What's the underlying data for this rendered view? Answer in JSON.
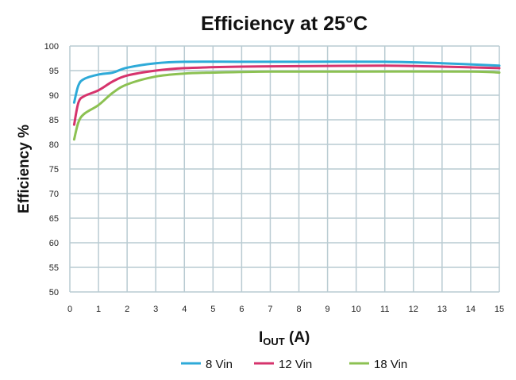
{
  "chart_data": {
    "type": "line",
    "title": "Efficiency at 25°C",
    "xlabel_main": "I",
    "xlabel_sub": "OUT",
    "xlabel_unit": " (A)",
    "ylabel": "Efficiency %",
    "xlim": [
      0,
      15
    ],
    "ylim": [
      50,
      100
    ],
    "xticks": [
      0,
      1,
      2,
      3,
      4,
      5,
      6,
      7,
      8,
      9,
      10,
      11,
      12,
      13,
      14,
      15
    ],
    "yticks": [
      50,
      55,
      60,
      65,
      70,
      75,
      80,
      85,
      90,
      95,
      100
    ],
    "grid": true,
    "legend_position": "bottom",
    "series": [
      {
        "name": "8 Vin",
        "color": "#2eaad8",
        "x": [
          0.15,
          0.3,
          0.5,
          1,
          1.5,
          2,
          3,
          4,
          6,
          8,
          11,
          13,
          15
        ],
        "y": [
          88.5,
          92,
          93.3,
          94.2,
          94.6,
          95.6,
          96.5,
          96.8,
          96.8,
          96.8,
          96.8,
          96.5,
          96.0
        ]
      },
      {
        "name": "12 Vin",
        "color": "#d6336c",
        "x": [
          0.15,
          0.3,
          0.5,
          1,
          1.5,
          2,
          3,
          4,
          6,
          8,
          11,
          13,
          15
        ],
        "y": [
          84,
          88.5,
          89.8,
          91,
          92.8,
          94,
          95,
          95.5,
          95.8,
          95.9,
          96,
          95.8,
          95.5
        ]
      },
      {
        "name": "18 Vin",
        "color": "#8cc152",
        "x": [
          0.15,
          0.3,
          0.5,
          1,
          1.5,
          2,
          3,
          4,
          5,
          7,
          10,
          14,
          15
        ],
        "y": [
          81,
          84.5,
          86.2,
          88,
          90.5,
          92.2,
          93.8,
          94.4,
          94.6,
          94.8,
          94.8,
          94.8,
          94.6
        ]
      }
    ]
  }
}
